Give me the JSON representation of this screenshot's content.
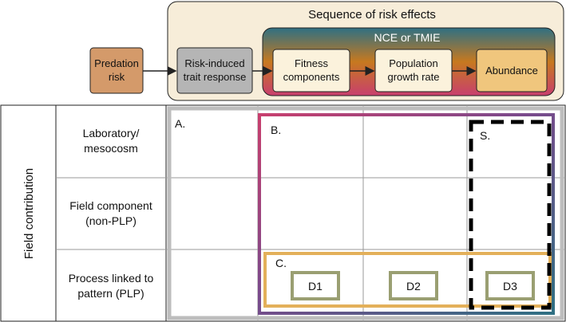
{
  "header": {
    "sequence_title": "Sequence of risk effects",
    "nce_title": "NCE or TMIE",
    "boxes": {
      "predation": [
        "Predation",
        "risk"
      ],
      "trait": [
        "Risk-induced",
        "trait response"
      ],
      "fitness": [
        "Fitness",
        "components"
      ],
      "population": [
        "Population",
        "growth rate"
      ],
      "abundance": [
        "Abundance"
      ]
    }
  },
  "grid": {
    "side_label": "Field contribution",
    "rows": [
      [
        "Laboratory/",
        "mesocosm"
      ],
      [
        "Field component",
        "(non-PLP)"
      ],
      [
        "Process linked to",
        "pattern (PLP)"
      ]
    ],
    "regions": {
      "a": "A.",
      "b": "B.",
      "c": "C.",
      "s": "S."
    },
    "d_boxes": [
      "D1",
      "D2",
      "D3"
    ]
  },
  "colors": {
    "predation_fill": "#d49a6a",
    "trait_fill": "#b5b5b5",
    "sequence_fill": "#f7edd9",
    "box_fill": "#fbf2dc",
    "abundance_fill": "#f0c67d",
    "region_c": "#e3b05a",
    "d_box": "#9a9f72",
    "outer_gray": "#bdbdbd"
  }
}
